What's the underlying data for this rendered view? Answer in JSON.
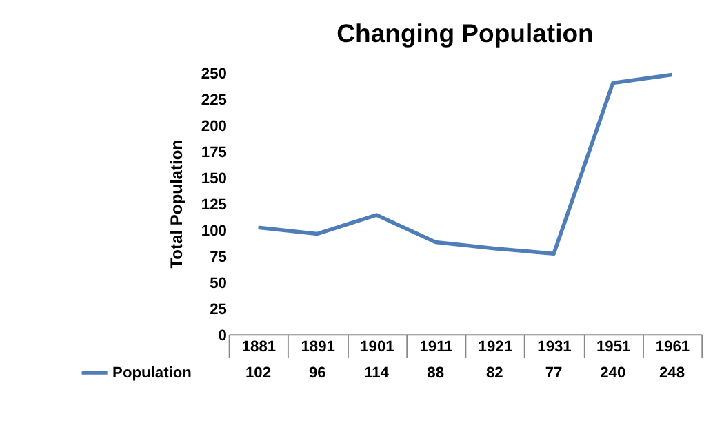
{
  "chart_data": {
    "type": "line",
    "title": "Changing Population",
    "ylabel": "Total Population",
    "categories": [
      "1881",
      "1891",
      "1901",
      "1911",
      "1921",
      "1931",
      "1951",
      "1961"
    ],
    "series": [
      {
        "name": "Population",
        "color": "#4f7db8",
        "values": [
          102,
          96,
          114,
          88,
          82,
          77,
          240,
          248
        ]
      }
    ],
    "ylim": [
      0,
      250
    ],
    "yticks": [
      0,
      25,
      50,
      75,
      100,
      125,
      150,
      175,
      200,
      225,
      250
    ],
    "grid": false,
    "legend": "bottom",
    "data_labels": true,
    "marker": "none",
    "line_style": "solid"
  }
}
